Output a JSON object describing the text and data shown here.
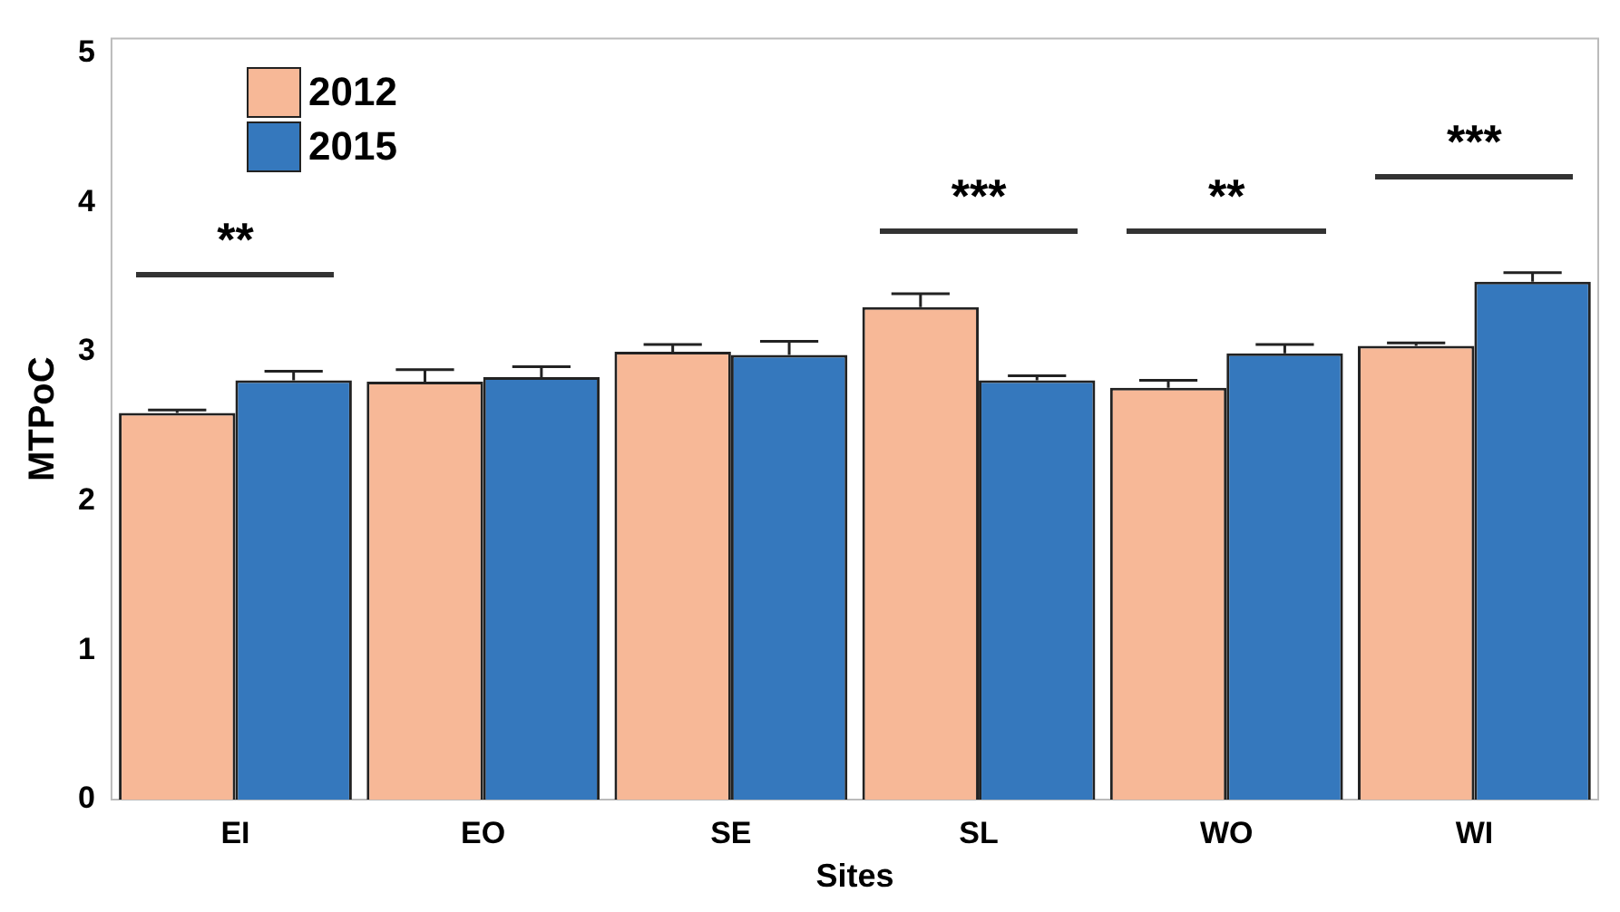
{
  "chart_data": {
    "type": "bar",
    "xlabel": "Sites",
    "ylabel": "MTPoC",
    "categories": [
      "EI",
      "EO",
      "SE",
      "SL",
      "WO",
      "WI"
    ],
    "series": [
      {
        "name": "2012",
        "color": "#f7b897",
        "values": [
          2.59,
          2.8,
          3.0,
          3.3,
          2.76,
          3.04
        ],
        "errors": [
          0.02,
          0.08,
          0.05,
          0.09,
          0.05,
          0.02
        ]
      },
      {
        "name": "2015",
        "color": "#3578bd",
        "values": [
          2.81,
          2.83,
          2.98,
          2.81,
          2.99,
          3.47
        ],
        "errors": [
          0.06,
          0.07,
          0.09,
          0.03,
          0.06,
          0.06
        ]
      }
    ],
    "ylim": [
      0,
      5.1
    ],
    "yticks": [
      0,
      1,
      2,
      3,
      4,
      5
    ],
    "grid": false,
    "legend": "top left",
    "annotations": [
      "**",
      "***",
      "**",
      "***"
    ]
  }
}
